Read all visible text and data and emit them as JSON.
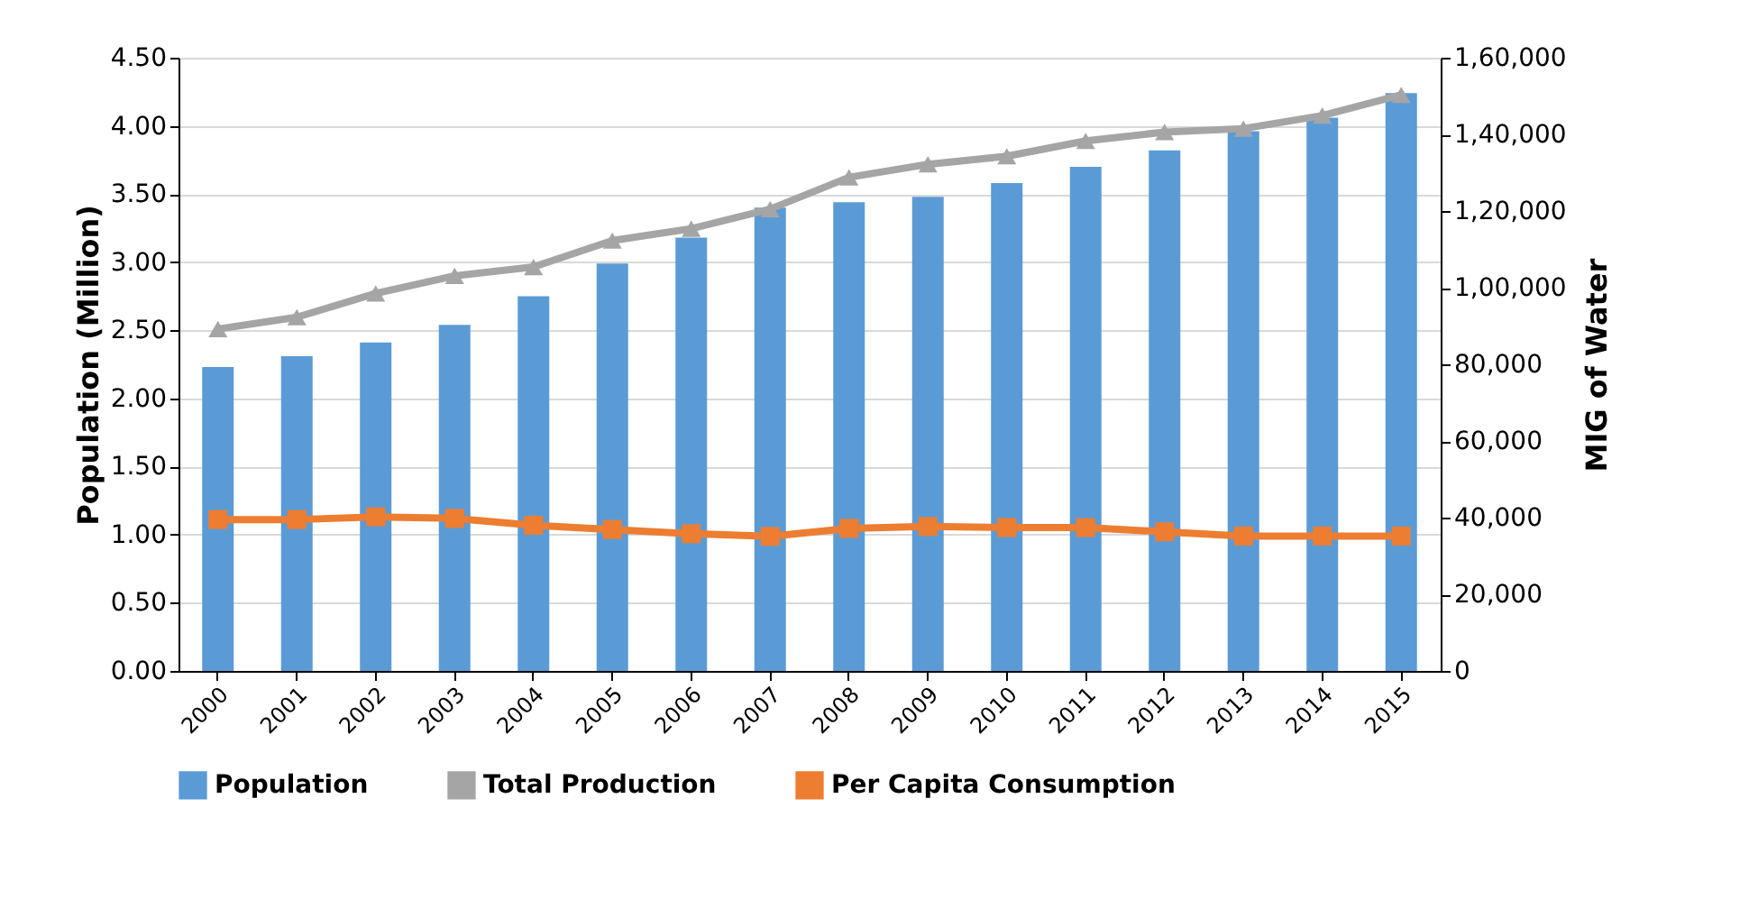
{
  "chart_data": {
    "type": "bar",
    "xlabel": null,
    "ylabel": "Population (Million)",
    "y2label": "MIG of Water",
    "categories": [
      "2000",
      "2001",
      "2002",
      "2003",
      "2004",
      "2005",
      "2006",
      "2007",
      "2008",
      "2009",
      "2010",
      "2011",
      "2012",
      "2013",
      "2014",
      "2015"
    ],
    "series": [
      {
        "name": "Population",
        "color": "#5b9bd5",
        "values": [
          2.23,
          2.31,
          2.41,
          2.54,
          2.75,
          2.99,
          3.18,
          3.4,
          3.44,
          3.48,
          3.58,
          3.7,
          3.82,
          3.96,
          4.06,
          4.24
        ]
      },
      {
        "name": "Total Production",
        "type": "line",
        "axis": "y2",
        "marker": "triangle",
        "color": "#a5a5a5",
        "values": [
          89200,
          92300,
          98500,
          103100,
          105400,
          112300,
          115400,
          120500,
          128800,
          132200,
          134300,
          138300,
          140600,
          141500,
          144900,
          150300
        ]
      },
      {
        "name": "Per Capita Consumption",
        "type": "line",
        "axis": "y2",
        "marker": "square",
        "color": "#ed7d31",
        "values": [
          39500,
          39500,
          40200,
          39800,
          38000,
          36900,
          35800,
          35100,
          37200,
          37700,
          37400,
          37400,
          36300,
          35200,
          35200,
          35200
        ]
      }
    ],
    "ylim": [
      0,
      4.5
    ],
    "yticks": [
      {
        "value": 0,
        "label": "0.00"
      },
      {
        "value": 0.5,
        "label": "0.50"
      },
      {
        "value": 1,
        "label": "1.00"
      },
      {
        "value": 1.5,
        "label": "1.50"
      },
      {
        "value": 2,
        "label": "2.00"
      },
      {
        "value": 2.5,
        "label": "2.50"
      },
      {
        "value": 3,
        "label": "3.00"
      },
      {
        "value": 3.5,
        "label": "3.50"
      },
      {
        "value": 4,
        "label": "4.00"
      },
      {
        "value": 4.5,
        "label": "4.50"
      }
    ],
    "y2lim": [
      0,
      160000
    ],
    "y2ticks": [
      0,
      {
        "value": 20000,
        "label": "20,000"
      },
      {
        "value": 40000,
        "label": "40,000"
      },
      {
        "value": 60000,
        "label": "60,000"
      },
      {
        "value": 80000,
        "label": "80,000"
      },
      {
        "value": 100000,
        "label": "1,00,000"
      },
      {
        "value": 120000,
        "label": "1,20,000"
      },
      {
        "value": 140000,
        "label": "1,40,000"
      },
      {
        "value": 160000,
        "label": "1,60,000"
      }
    ],
    "grid": "y",
    "legend": "bottom"
  }
}
